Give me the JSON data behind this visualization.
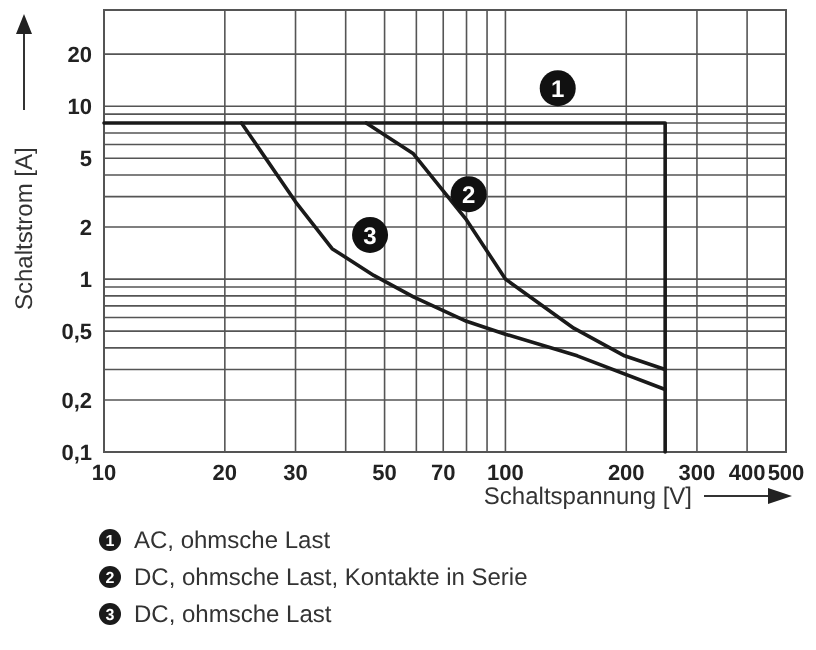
{
  "chart_data": {
    "type": "line",
    "xlabel": "Schaltspannung [V]",
    "ylabel": "Schaltstrom [A]",
    "log": "xy",
    "grid": true,
    "legend": "bottom",
    "marker": "none",
    "line_style": "solid",
    "xlim": [
      10,
      500
    ],
    "ylim": [
      0.1,
      36
    ],
    "xticks": [
      10,
      20,
      30,
      {
        "value": 40,
        "label": null
      },
      50,
      {
        "value": 60,
        "label": null
      },
      70,
      {
        "value": 80,
        "label": null
      },
      {
        "value": 90,
        "label": null
      },
      100,
      200,
      300,
      400,
      500
    ],
    "yticks": [
      {
        "value": 0.1,
        "label": "0,1"
      },
      {
        "value": 0.2,
        "label": "0,2"
      },
      {
        "value": 0.3,
        "label": null
      },
      {
        "value": 0.4,
        "label": null
      },
      {
        "value": 0.5,
        "label": "0,5"
      },
      {
        "value": 0.6,
        "label": null
      },
      {
        "value": 0.7,
        "label": null
      },
      {
        "value": 0.8,
        "label": null
      },
      {
        "value": 0.9,
        "label": null
      },
      1,
      2,
      {
        "value": 3,
        "label": null
      },
      {
        "value": 4,
        "label": null
      },
      5,
      {
        "value": 6,
        "label": null
      },
      {
        "value": 7,
        "label": null
      },
      {
        "value": 8,
        "label": null
      },
      {
        "value": 9,
        "label": null
      },
      10,
      20
    ],
    "series": [
      {
        "name": "AC, ohmsche Last",
        "color": "#1a1a1a",
        "x": [
          10,
          250,
          250
        ],
        "values": [
          8,
          8,
          0.1
        ]
      },
      {
        "name": "DC, ohmsche Last, Kontakte in Serie",
        "color": "#1a1a1a",
        "x": [
          45,
          59,
          80,
          100,
          148,
          198,
          250
        ],
        "values": [
          8,
          5.3,
          2.2,
          1,
          0.52,
          0.36,
          0.3
        ]
      },
      {
        "name": "DC, ohmsche Last",
        "color": "#1a1a1a",
        "x": [
          22,
          30,
          37,
          47,
          59,
          80,
          100,
          151,
          250
        ],
        "values": [
          8,
          2.8,
          1.5,
          1.05,
          0.79,
          0.57,
          0.48,
          0.36,
          0.23
        ]
      }
    ],
    "annotations": [
      {
        "text": "1",
        "x": 135,
        "y": 12.7
      },
      {
        "text": "2",
        "x": 81,
        "y": 3.1
      },
      {
        "text": "3",
        "x": 46,
        "y": 1.8
      }
    ]
  }
}
